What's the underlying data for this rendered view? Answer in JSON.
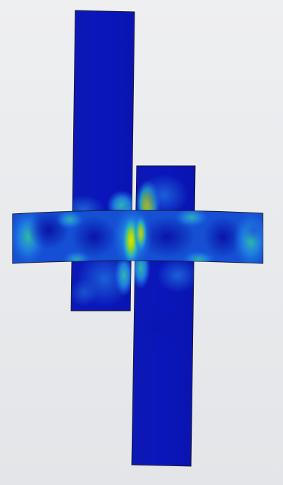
{
  "viewport": {
    "background": "#e8e9ec"
  },
  "colormap": {
    "low": "#0a14b8",
    "mid_low": "#1a66e0",
    "mid": "#26b0c8",
    "mid_high": "#9ad818",
    "high": "#e2e010"
  },
  "model": {
    "parts": [
      "upper-left-member",
      "lower-right-member",
      "horizontal-beam"
    ]
  }
}
